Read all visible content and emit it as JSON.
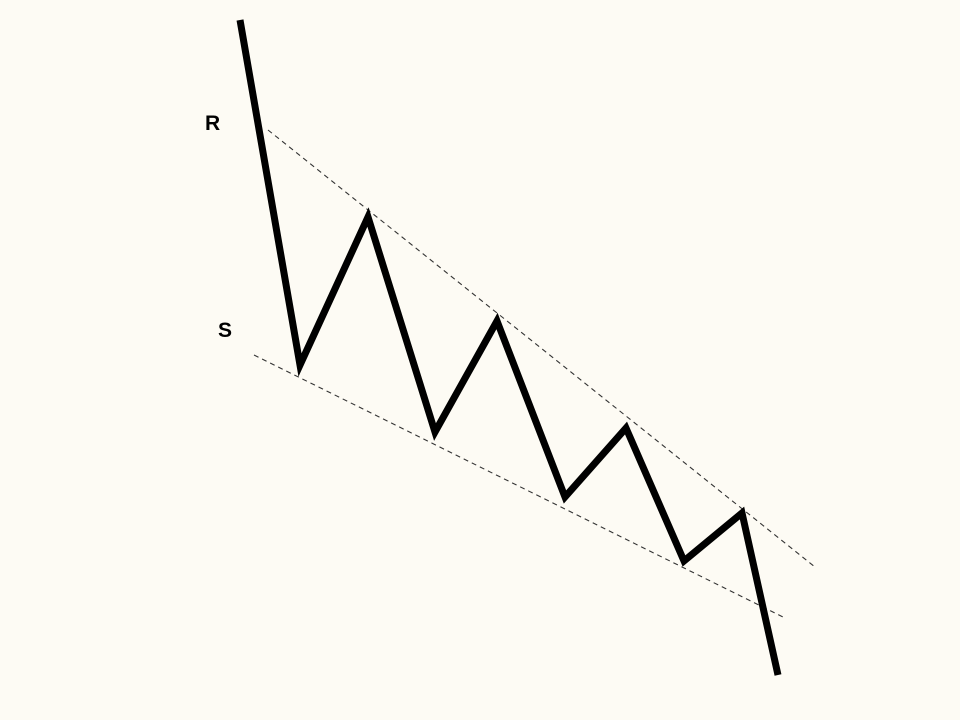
{
  "diagram": {
    "type": "falling-wedge",
    "labels": {
      "resistance": "R",
      "support": "S"
    },
    "colors": {
      "background": "#fdfbf4",
      "price": "#000000",
      "trendline": "#333333",
      "label": "#000000"
    }
  }
}
